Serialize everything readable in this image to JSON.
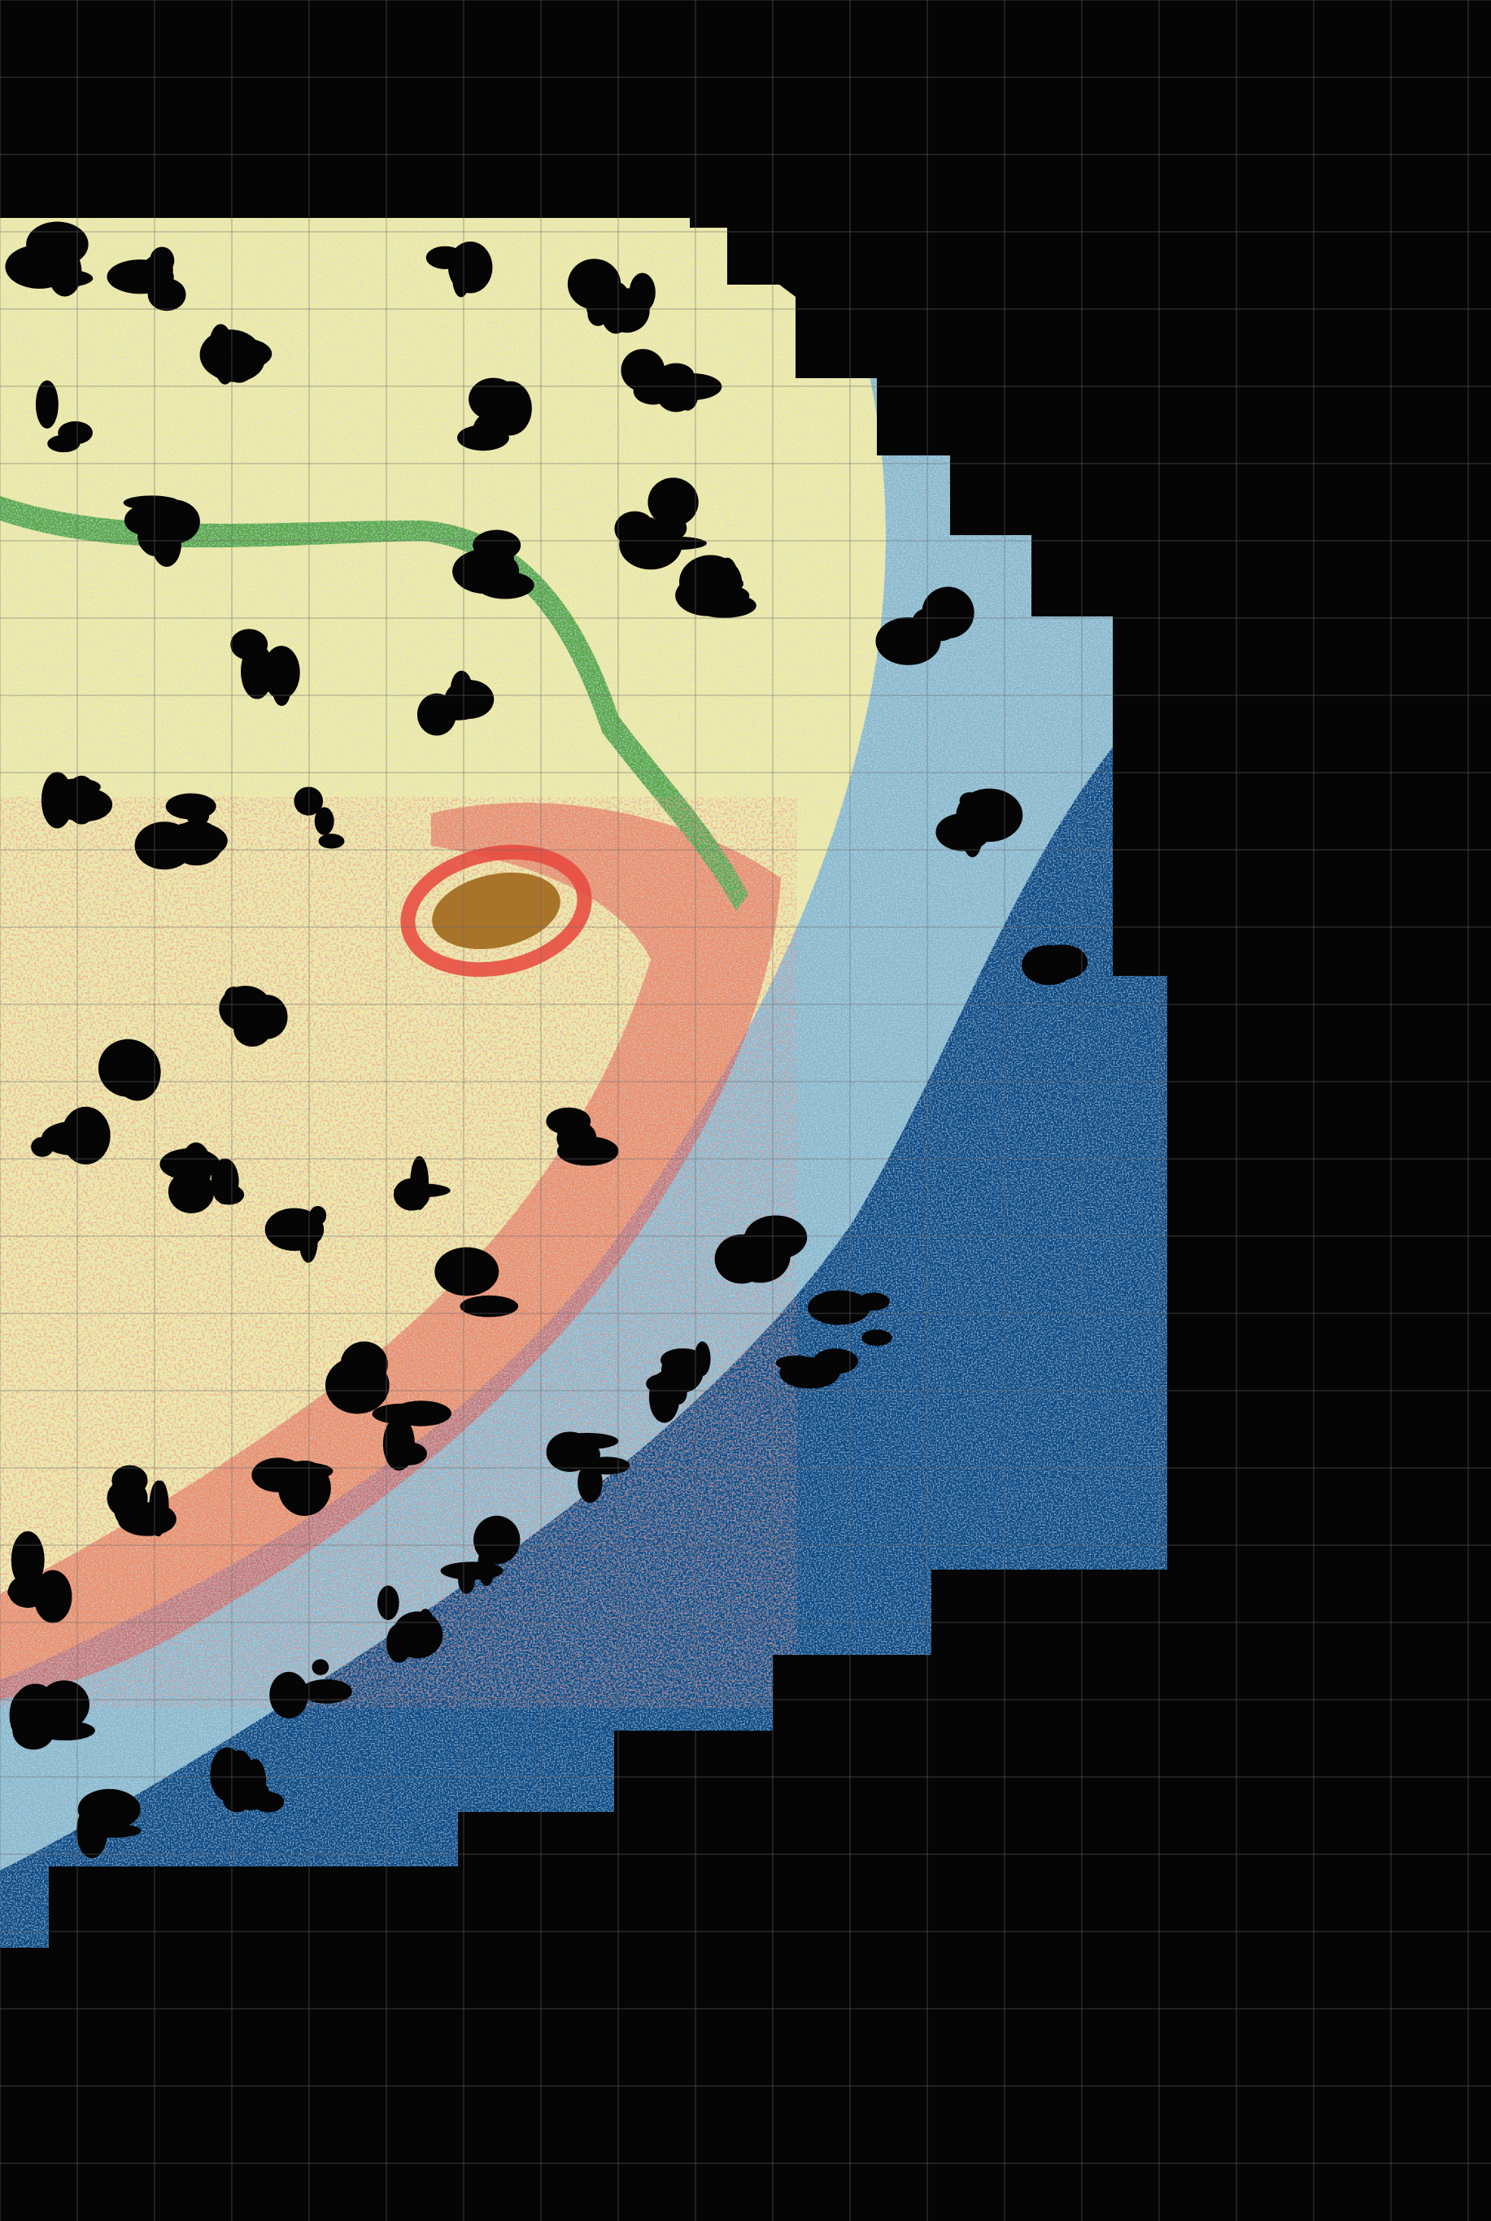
{
  "map": {
    "type": "classified-raster-mosaic",
    "background_color": "#050505",
    "grid": {
      "visible": true,
      "color": "#6a6a6a"
    },
    "classes": [
      {
        "name": "deep-blue",
        "color": "#0f4a85"
      },
      {
        "name": "light-blue",
        "color": "#8cb9ce"
      },
      {
        "name": "cream",
        "color": "#f2eba3"
      },
      {
        "name": "red",
        "color": "#e8473d"
      },
      {
        "name": "green",
        "color": "#5aa84a"
      },
      {
        "name": "brown",
        "color": "#a8742a"
      },
      {
        "name": "black",
        "color": "#050505"
      }
    ]
  }
}
